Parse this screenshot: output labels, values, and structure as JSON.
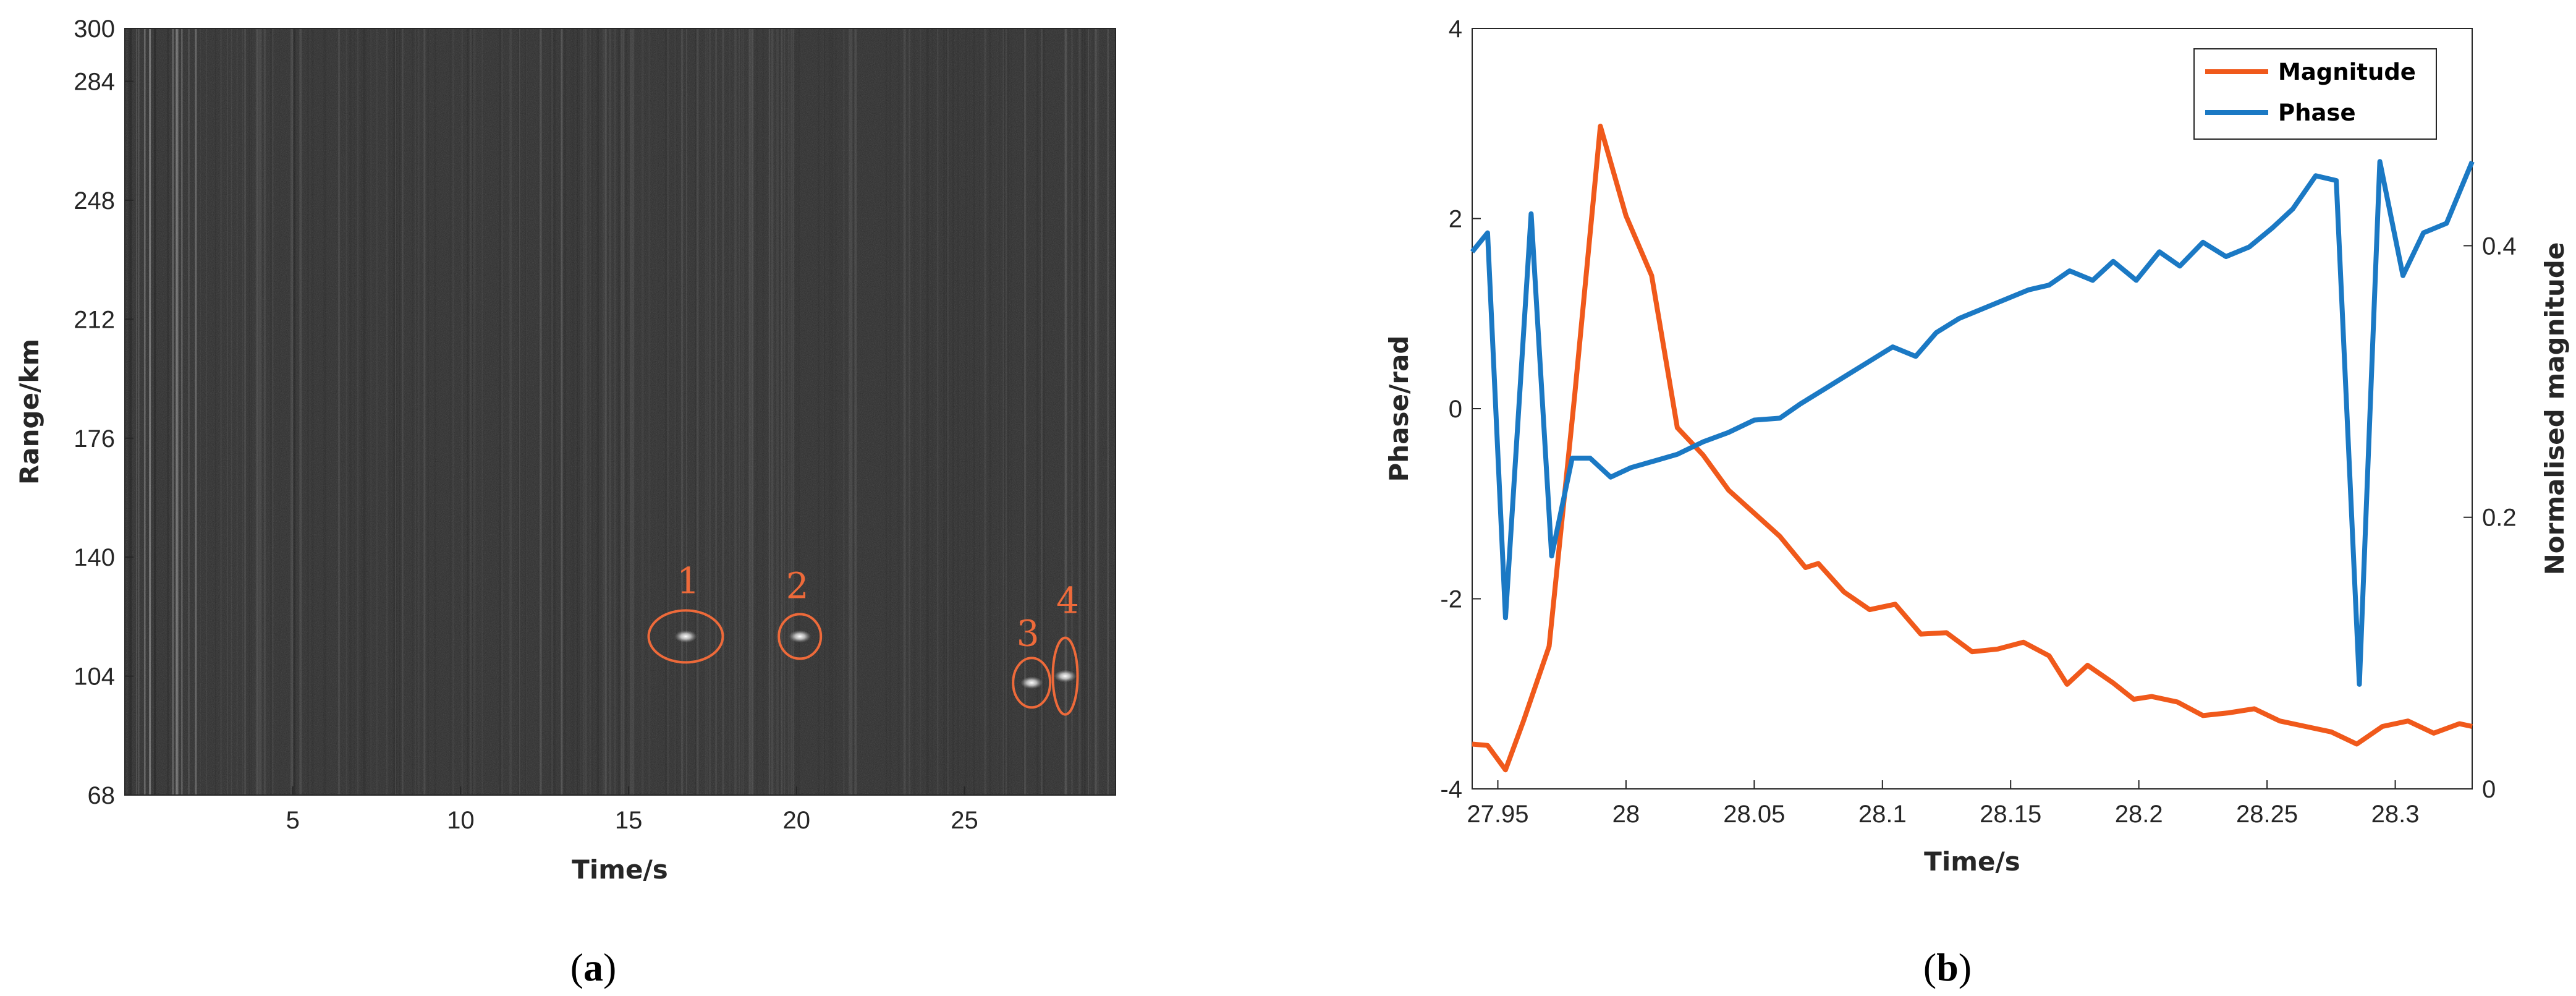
{
  "colors": {
    "magnitude": "#F0591B",
    "phase": "#1B79C4",
    "annotation": "#EE6A3A",
    "image_bg": "#2c2c2c",
    "axis": "#262626"
  },
  "panels": {
    "a": {
      "open": "(",
      "letter": "a",
      "close": ")"
    },
    "b": {
      "open": "(",
      "letter": "b",
      "close": ")"
    }
  },
  "chart_data": [
    {
      "type": "heatmap",
      "xlabel": "Time/s",
      "ylabel": "Range/km",
      "xlim": [
        0,
        29.5
      ],
      "ylim": [
        68,
        300
      ],
      "xticks": [
        5,
        10,
        15,
        20,
        25
      ],
      "yticks": [
        68,
        104,
        140,
        176,
        212,
        248,
        284,
        300
      ],
      "annotations": [
        {
          "label": "1",
          "x": 16.7,
          "y": 116
        },
        {
          "label": "2",
          "x": 20.1,
          "y": 116
        },
        {
          "label": "3",
          "x": 27.0,
          "y": 102
        },
        {
          "label": "4",
          "x": 28.0,
          "y": 104
        }
      ]
    },
    {
      "type": "line",
      "xlabel": "Time/s",
      "ylabel": "Phase/rad",
      "y2label": "Normalised magnitude",
      "xlim": [
        27.94,
        28.33
      ],
      "ylim": [
        -4,
        4
      ],
      "y2lim": [
        0,
        0.56
      ],
      "xticks": [
        27.95,
        28,
        28.05,
        28.1,
        28.15,
        28.2,
        28.25,
        28.3
      ],
      "yticks": [
        -4,
        -2,
        0,
        2,
        4
      ],
      "y2ticks": [
        0,
        0.2,
        0.4
      ],
      "legend_position": "top-right",
      "series": [
        {
          "name": "Magnitude",
          "axis": "right",
          "x": [
            27.94,
            27.946,
            27.953,
            27.96,
            27.97,
            27.98,
            27.99,
            28.0,
            28.01,
            28.02,
            28.03,
            28.04,
            28.05,
            28.06,
            28.07,
            28.075,
            28.085,
            28.095,
            28.105,
            28.115,
            28.125,
            28.135,
            28.145,
            28.155,
            28.165,
            28.172,
            28.18,
            28.19,
            28.198,
            28.205,
            28.215,
            28.225,
            28.235,
            28.245,
            28.255,
            28.265,
            28.275,
            28.285,
            28.295,
            28.305,
            28.315,
            28.325,
            28.33
          ],
          "values": [
            0.033,
            0.032,
            0.014,
            0.05,
            0.105,
            0.29,
            0.488,
            0.422,
            0.378,
            0.266,
            0.246,
            0.22,
            0.203,
            0.186,
            0.163,
            0.166,
            0.145,
            0.132,
            0.136,
            0.114,
            0.115,
            0.101,
            0.103,
            0.108,
            0.098,
            0.077,
            0.091,
            0.078,
            0.066,
            0.068,
            0.064,
            0.054,
            0.056,
            0.059,
            0.05,
            0.046,
            0.042,
            0.033,
            0.046,
            0.05,
            0.041,
            0.048,
            0.046
          ]
        },
        {
          "name": "Phase",
          "axis": "left",
          "x": [
            27.94,
            27.946,
            27.953,
            27.963,
            27.971,
            27.979,
            27.986,
            27.994,
            28.002,
            28.011,
            28.02,
            28.03,
            28.04,
            28.05,
            28.06,
            28.068,
            28.077,
            28.086,
            28.095,
            28.104,
            28.113,
            28.121,
            28.13,
            28.139,
            28.148,
            28.157,
            28.165,
            28.173,
            28.182,
            28.19,
            28.199,
            28.208,
            28.216,
            28.225,
            28.234,
            28.243,
            28.252,
            28.26,
            28.269,
            28.277,
            28.286,
            28.294,
            28.303,
            28.311,
            28.32,
            28.33
          ],
          "values": [
            1.65,
            1.85,
            -2.2,
            2.05,
            -1.55,
            -0.52,
            -0.52,
            -0.72,
            -0.62,
            -0.55,
            -0.48,
            -0.35,
            -0.25,
            -0.12,
            -0.1,
            0.05,
            0.2,
            0.35,
            0.5,
            0.65,
            0.55,
            0.8,
            0.95,
            1.05,
            1.15,
            1.25,
            1.3,
            1.45,
            1.35,
            1.55,
            1.35,
            1.65,
            1.5,
            1.75,
            1.6,
            1.7,
            1.9,
            2.1,
            2.45,
            2.4,
            -2.9,
            2.6,
            1.4,
            1.85,
            1.95,
            2.6
          ]
        }
      ]
    }
  ]
}
